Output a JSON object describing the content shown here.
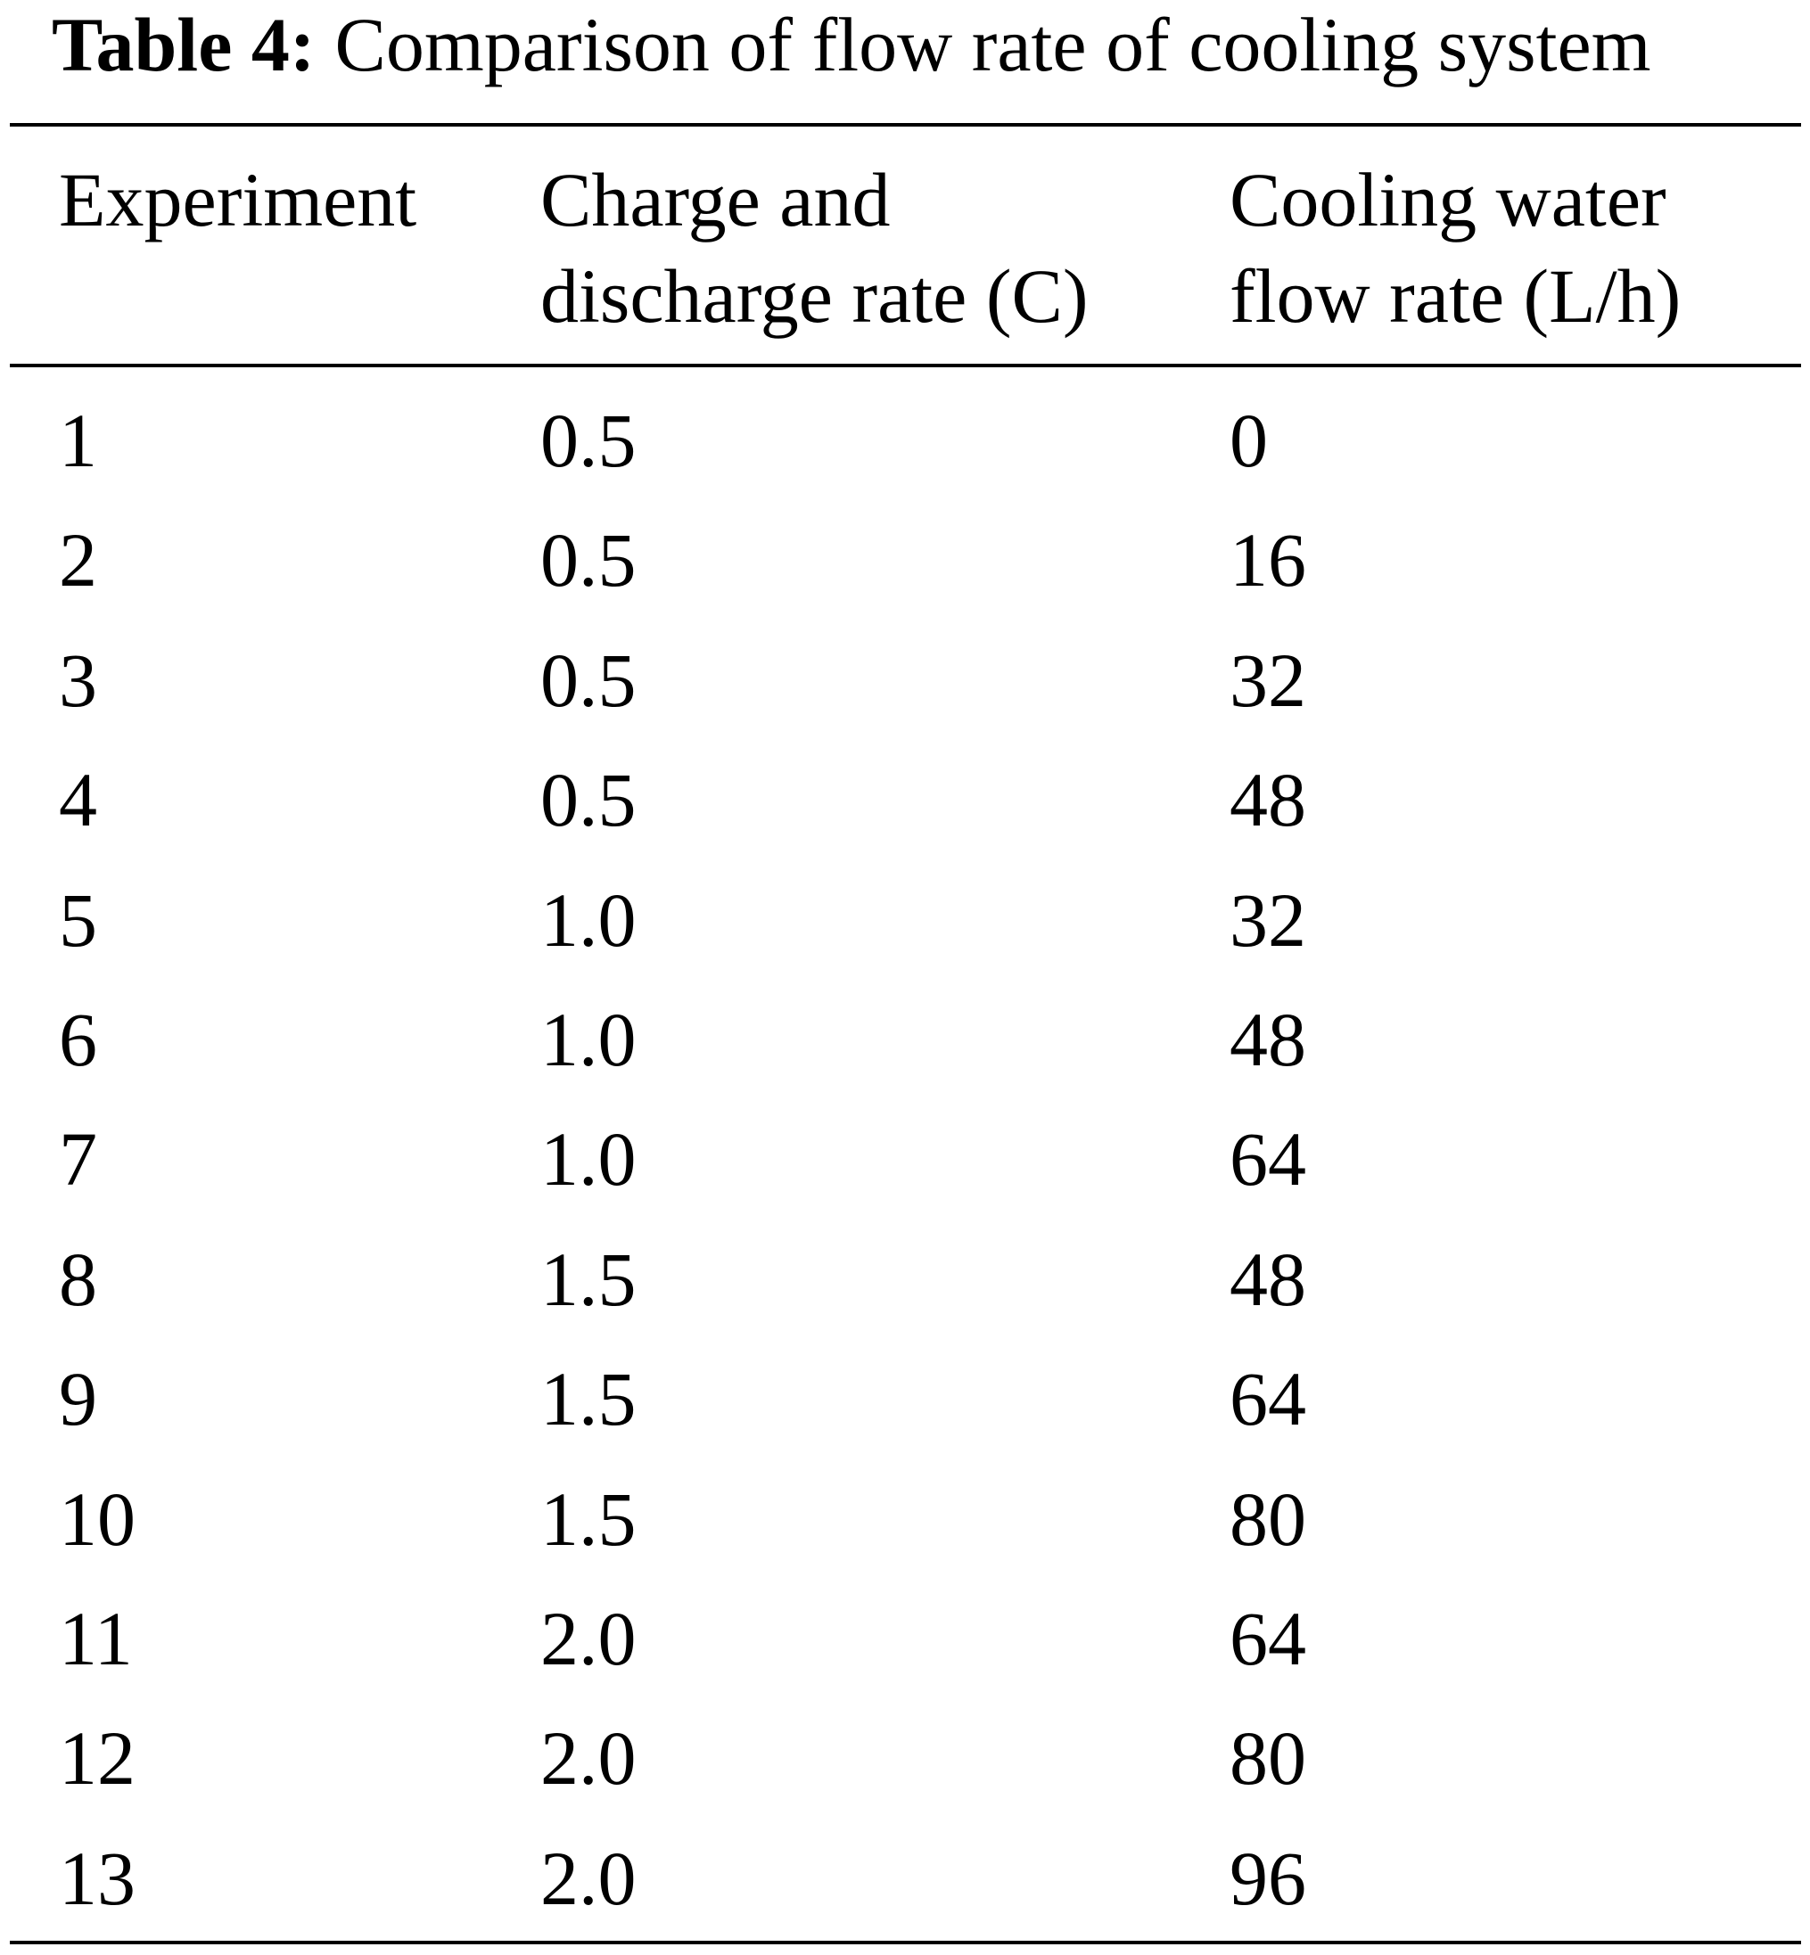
{
  "table": {
    "label": "Table 4:",
    "caption": "Comparison of flow rate of cooling system",
    "columns": [
      "Experiment",
      "Charge and discharge rate (C)",
      "Cooling water flow rate (L/h)"
    ],
    "rows": [
      [
        "1",
        "0.5",
        "0"
      ],
      [
        "2",
        "0.5",
        "16"
      ],
      [
        "3",
        "0.5",
        "32"
      ],
      [
        "4",
        "0.5",
        "48"
      ],
      [
        "5",
        "1.0",
        "32"
      ],
      [
        "6",
        "1.0",
        "48"
      ],
      [
        "7",
        "1.0",
        "64"
      ],
      [
        "8",
        "1.5",
        "48"
      ],
      [
        "9",
        "1.5",
        "64"
      ],
      [
        "10",
        "1.5",
        "80"
      ],
      [
        "11",
        "2.0",
        "64"
      ],
      [
        "12",
        "2.0",
        "80"
      ],
      [
        "13",
        "2.0",
        "96"
      ]
    ]
  }
}
